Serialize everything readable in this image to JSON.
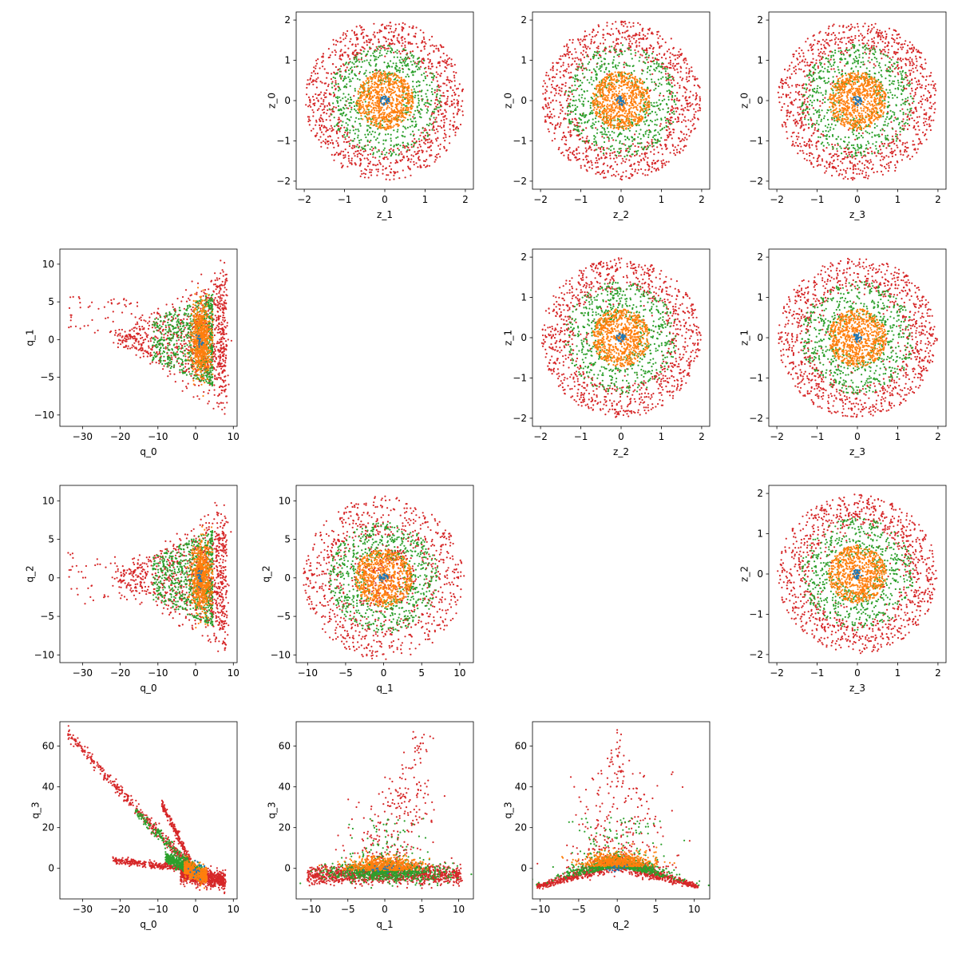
{
  "figure": {
    "background": "#ffffff",
    "point_colors": [
      "#1f77b4",
      "#ff7f0e",
      "#2ca02c",
      "#d62728"
    ]
  },
  "chart_data": [
    {
      "type": "scatter",
      "row": 0,
      "col": 1,
      "xlabel": "z_1",
      "ylabel": "z_0",
      "xlim": [
        -2.2,
        2.2
      ],
      "ylim": [
        -2.2,
        2.2
      ],
      "xticks": [
        -2,
        -1,
        0,
        1,
        2
      ],
      "yticks": [
        -2,
        -1,
        0,
        1,
        2
      ],
      "shape": "disc",
      "grid": false,
      "legend": "none"
    },
    {
      "type": "scatter",
      "row": 0,
      "col": 2,
      "xlabel": "z_2",
      "ylabel": "z_0",
      "xlim": [
        -2.2,
        2.2
      ],
      "ylim": [
        -2.2,
        2.2
      ],
      "xticks": [
        -2,
        -1,
        0,
        1,
        2
      ],
      "yticks": [
        -2,
        -1,
        0,
        1,
        2
      ],
      "shape": "disc",
      "grid": false,
      "legend": "none"
    },
    {
      "type": "scatter",
      "row": 0,
      "col": 3,
      "xlabel": "z_3",
      "ylabel": "z_0",
      "xlim": [
        -2.2,
        2.2
      ],
      "ylim": [
        -2.2,
        2.2
      ],
      "xticks": [
        -2,
        -1,
        0,
        1,
        2
      ],
      "yticks": [
        -2,
        -1,
        0,
        1,
        2
      ],
      "shape": "disc",
      "grid": false,
      "legend": "none"
    },
    {
      "type": "scatter",
      "row": 1,
      "col": 0,
      "xlabel": "q_0",
      "ylabel": "q_1",
      "xlim": [
        -36,
        11
      ],
      "ylim": [
        -11.5,
        12
      ],
      "xticks": [
        -30,
        -20,
        -10,
        0,
        10
      ],
      "yticks": [
        -10,
        -5,
        0,
        5,
        10
      ],
      "shape": "fan_q0_q1",
      "grid": false,
      "legend": "none"
    },
    {
      "type": "scatter",
      "row": 1,
      "col": 2,
      "xlabel": "z_2",
      "ylabel": "z_1",
      "xlim": [
        -2.2,
        2.2
      ],
      "ylim": [
        -2.2,
        2.2
      ],
      "xticks": [
        -2,
        -1,
        0,
        1,
        2
      ],
      "yticks": [
        -2,
        -1,
        0,
        1,
        2
      ],
      "shape": "disc",
      "grid": false,
      "legend": "none"
    },
    {
      "type": "scatter",
      "row": 1,
      "col": 3,
      "xlabel": "z_3",
      "ylabel": "z_1",
      "xlim": [
        -2.2,
        2.2
      ],
      "ylim": [
        -2.2,
        2.2
      ],
      "xticks": [
        -2,
        -1,
        0,
        1,
        2
      ],
      "yticks": [
        -2,
        -1,
        0,
        1,
        2
      ],
      "shape": "disc",
      "grid": false,
      "legend": "none"
    },
    {
      "type": "scatter",
      "row": 2,
      "col": 0,
      "xlabel": "q_0",
      "ylabel": "q_2",
      "xlim": [
        -36,
        11
      ],
      "ylim": [
        -11,
        12
      ],
      "xticks": [
        -30,
        -20,
        -10,
        0,
        10
      ],
      "yticks": [
        -10,
        -5,
        0,
        5,
        10
      ],
      "shape": "fan_q0_q2",
      "grid": false,
      "legend": "none"
    },
    {
      "type": "scatter",
      "row": 2,
      "col": 1,
      "xlabel": "q_1",
      "ylabel": "q_2",
      "xlim": [
        -11.5,
        11.8
      ],
      "ylim": [
        -11,
        12
      ],
      "xticks": [
        -10,
        -5,
        0,
        5,
        10
      ],
      "yticks": [
        -10,
        -5,
        0,
        5,
        10
      ],
      "shape": "disc_q",
      "grid": false,
      "legend": "none"
    },
    {
      "type": "scatter",
      "row": 2,
      "col": 3,
      "xlabel": "z_3",
      "ylabel": "z_2",
      "xlim": [
        -2.2,
        2.2
      ],
      "ylim": [
        -2.2,
        2.2
      ],
      "xticks": [
        -2,
        -1,
        0,
        1,
        2
      ],
      "yticks": [
        -2,
        -1,
        0,
        1,
        2
      ],
      "shape": "disc",
      "grid": false,
      "legend": "none"
    },
    {
      "type": "scatter",
      "row": 3,
      "col": 0,
      "xlabel": "q_0",
      "ylabel": "q_3",
      "xlim": [
        -36,
        11
      ],
      "ylim": [
        -15,
        72
      ],
      "xticks": [
        -30,
        -20,
        -10,
        0,
        10
      ],
      "yticks": [
        0,
        20,
        40,
        60
      ],
      "shape": "rays_q0_q3",
      "grid": false,
      "legend": "none"
    },
    {
      "type": "scatter",
      "row": 3,
      "col": 1,
      "xlabel": "q_1",
      "ylabel": "q_3",
      "xlim": [
        -12,
        12
      ],
      "ylim": [
        -15,
        72
      ],
      "xticks": [
        -10,
        -5,
        0,
        5,
        10
      ],
      "yticks": [
        0,
        20,
        40,
        60
      ],
      "shape": "band_q1_q3",
      "grid": false,
      "legend": "none"
    },
    {
      "type": "scatter",
      "row": 3,
      "col": 2,
      "xlabel": "q_2",
      "ylabel": "q_3",
      "xlim": [
        -11,
        12
      ],
      "ylim": [
        -15,
        72
      ],
      "xticks": [
        -10,
        -5,
        0,
        5,
        10
      ],
      "yticks": [
        0,
        20,
        40,
        60
      ],
      "shape": "tent_q2_q3",
      "grid": false,
      "legend": "none"
    }
  ]
}
